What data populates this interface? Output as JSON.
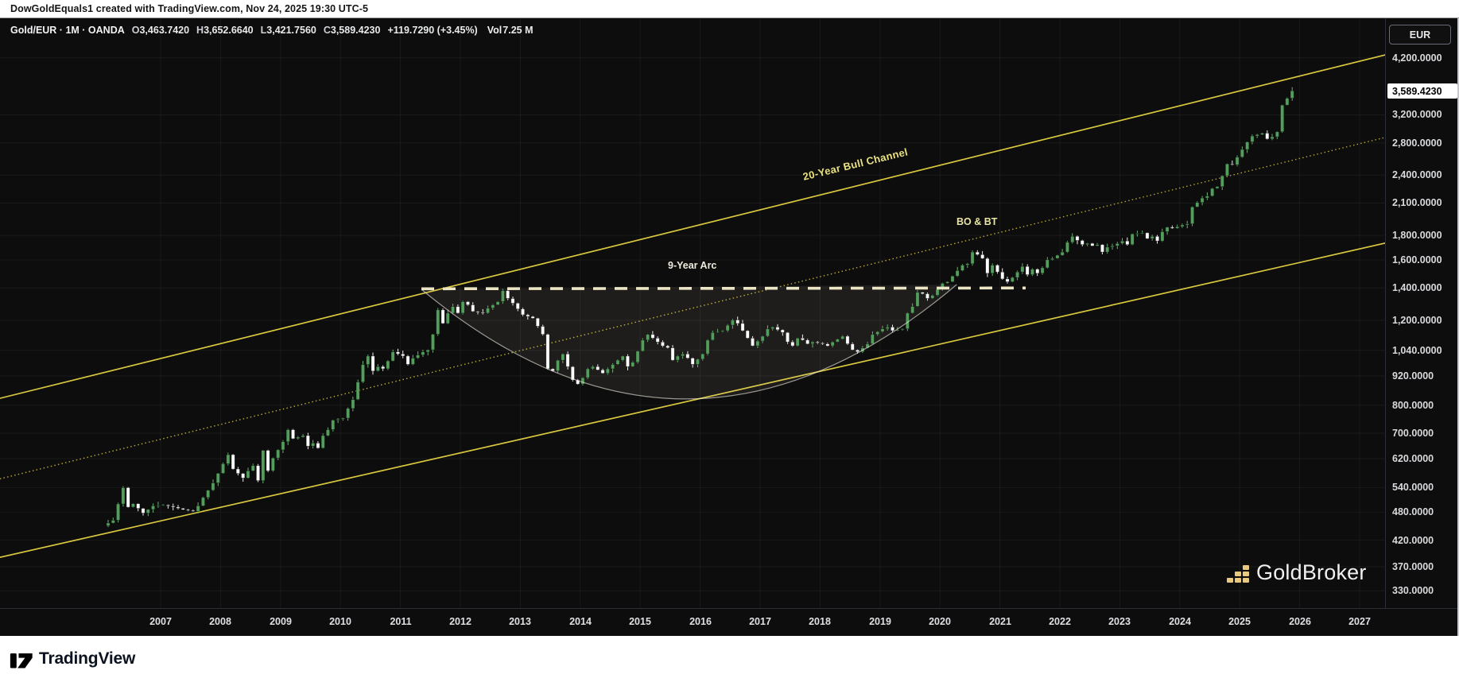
{
  "attribution": "DowGoldEquals1 created with TradingView.com, Nov 24, 2025 19:30 UTC-5",
  "legend": {
    "symbol_line": "Gold/EUR · 1M · OANDA",
    "o_label": "O",
    "o": "3,463.7420",
    "h_label": "H",
    "h": "3,652.6640",
    "l_label": "L",
    "l": "3,421.7560",
    "c_label": "C",
    "c": "3,589.4230",
    "change": "+119.7290 (+3.45%)",
    "vol_label": "Vol",
    "vol": "7.25 M"
  },
  "price_scale": {
    "currency_button": "EUR",
    "last_price_label": "3,589.4230"
  },
  "footer": {
    "brand": "TradingView"
  },
  "watermark": {
    "brand": "GoldBroker",
    "icon_color": "#e9c87f"
  },
  "annotation_labels": {
    "bull_channel": "20-Year Bull Channel",
    "arc": "9-Year Arc",
    "bo_bt": "BO & BT"
  },
  "colors": {
    "up_candle": "#539e5c",
    "up_wick": "#6fae76",
    "down_candle": "#ffffff",
    "down_wick": "#ededed",
    "channel_solid": "#d9c83d",
    "channel_dotted": "#b7aa30",
    "arc_chord_dashed": "#ece5c4",
    "arc_stroke": "rgba(244,241,229,0.6)",
    "arc_fill": "rgba(236,234,212,0.08)",
    "background": "#0d0d0d",
    "grid": "rgba(255,255,255,0.05)",
    "axis_text": "#d9dadd"
  },
  "chart_data": {
    "type": "candlestick",
    "title": "Gold/EUR · 1M · OANDA",
    "xlabel": "Year",
    "ylabel": "EUR",
    "y_scale": "log",
    "x_years": [
      "2007",
      "2008",
      "2009",
      "2010",
      "2011",
      "2012",
      "2013",
      "2014",
      "2015",
      "2016",
      "2017",
      "2018",
      "2019",
      "2020",
      "2021",
      "2022",
      "2023",
      "2024",
      "2025",
      "2026",
      "2027"
    ],
    "y_ticks": [
      {
        "v": 4200,
        "label": "4,200.0000"
      },
      {
        "v": 3200,
        "label": "3,200.0000"
      },
      {
        "v": 2800,
        "label": "2,800.0000"
      },
      {
        "v": 2400,
        "label": "2,400.0000"
      },
      {
        "v": 2100,
        "label": "2,100.0000"
      },
      {
        "v": 1800,
        "label": "1,800.0000"
      },
      {
        "v": 1600,
        "label": "1,600.0000"
      },
      {
        "v": 1400,
        "label": "1,400.0000"
      },
      {
        "v": 1200,
        "label": "1,200.0000"
      },
      {
        "v": 1040,
        "label": "1,040.0000"
      },
      {
        "v": 920,
        "label": "920.0000"
      },
      {
        "v": 800,
        "label": "800.0000"
      },
      {
        "v": 700,
        "label": "700.0000"
      },
      {
        "v": 620,
        "label": "620.0000"
      },
      {
        "v": 540,
        "label": "540.0000"
      },
      {
        "v": 480,
        "label": "480.0000"
      },
      {
        "v": 420,
        "label": "420.0000"
      },
      {
        "v": 370,
        "label": "370.0000"
      },
      {
        "v": 330,
        "label": "330.0000"
      }
    ],
    "months_range": {
      "start": "2006-02",
      "end": "2025-11"
    },
    "last_candle": {
      "o": 3463.742,
      "h": 3652.664,
      "l": 3421.756,
      "c": 3589.423,
      "change": 119.729,
      "change_pct": 3.45,
      "volume": "7.25 M"
    },
    "price_path": [
      [
        2006.083,
        450
      ],
      [
        2006.25,
        462
      ],
      [
        2006.417,
        540
      ],
      [
        2006.5,
        492
      ],
      [
        2006.583,
        500
      ],
      [
        2006.75,
        478
      ],
      [
        2006.917,
        495
      ],
      [
        2007.083,
        497
      ],
      [
        2007.25,
        492
      ],
      [
        2007.417,
        486
      ],
      [
        2007.583,
        482
      ],
      [
        2007.667,
        495
      ],
      [
        2007.75,
        515
      ],
      [
        2007.917,
        552
      ],
      [
        2008.083,
        605
      ],
      [
        2008.167,
        632
      ],
      [
        2008.25,
        590
      ],
      [
        2008.417,
        565
      ],
      [
        2008.5,
        585
      ],
      [
        2008.583,
        600
      ],
      [
        2008.667,
        558
      ],
      [
        2008.75,
        645
      ],
      [
        2008.833,
        585
      ],
      [
        2008.917,
        622
      ],
      [
        2009.083,
        672
      ],
      [
        2009.167,
        712
      ],
      [
        2009.25,
        682
      ],
      [
        2009.417,
        692
      ],
      [
        2009.5,
        658
      ],
      [
        2009.583,
        668
      ],
      [
        2009.667,
        652
      ],
      [
        2009.75,
        692
      ],
      [
        2009.833,
        712
      ],
      [
        2009.917,
        745
      ],
      [
        2010.083,
        752
      ],
      [
        2010.167,
        788
      ],
      [
        2010.25,
        822
      ],
      [
        2010.417,
        972
      ],
      [
        2010.5,
        1012
      ],
      [
        2010.583,
        942
      ],
      [
        2010.667,
        962
      ],
      [
        2010.75,
        952
      ],
      [
        2010.833,
        988
      ],
      [
        2010.917,
        1032
      ],
      [
        2011.083,
        1012
      ],
      [
        2011.167,
        972
      ],
      [
        2011.25,
        1002
      ],
      [
        2011.417,
        1032
      ],
      [
        2011.5,
        1042
      ],
      [
        2011.583,
        1122
      ],
      [
        2011.667,
        1262
      ],
      [
        2011.75,
        1182
      ],
      [
        2011.833,
        1242
      ],
      [
        2011.917,
        1282
      ],
      [
        2011.96,
        1210
      ],
      [
        2012.083,
        1312
      ],
      [
        2012.167,
        1292
      ],
      [
        2012.25,
        1252
      ],
      [
        2012.417,
        1242
      ],
      [
        2012.5,
        1272
      ],
      [
        2012.583,
        1292
      ],
      [
        2012.667,
        1312
      ],
      [
        2012.75,
        1382
      ],
      [
        2012.833,
        1332
      ],
      [
        2012.917,
        1302
      ],
      [
        2013.083,
        1232
      ],
      [
        2013.167,
        1222
      ],
      [
        2013.25,
        1212
      ],
      [
        2013.417,
        1122
      ],
      [
        2013.5,
        952
      ],
      [
        2013.583,
        942
      ],
      [
        2013.667,
        992
      ],
      [
        2013.75,
        1022
      ],
      [
        2013.833,
        962
      ],
      [
        2013.917,
        902
      ],
      [
        2013.96,
        872
      ],
      [
        2014.083,
        912
      ],
      [
        2014.167,
        952
      ],
      [
        2014.25,
        962
      ],
      [
        2014.417,
        932
      ],
      [
        2014.5,
        952
      ],
      [
        2014.583,
        972
      ],
      [
        2014.667,
        992
      ],
      [
        2014.75,
        1012
      ],
      [
        2014.833,
        962
      ],
      [
        2014.917,
        982
      ],
      [
        2015.083,
        1092
      ],
      [
        2015.167,
        1122
      ],
      [
        2015.25,
        1102
      ],
      [
        2015.417,
        1062
      ],
      [
        2015.5,
        1052
      ],
      [
        2015.583,
        992
      ],
      [
        2015.667,
        1012
      ],
      [
        2015.75,
        1022
      ],
      [
        2015.833,
        1002
      ],
      [
        2015.917,
        972
      ],
      [
        2016.083,
        1022
      ],
      [
        2016.167,
        1092
      ],
      [
        2016.25,
        1132
      ],
      [
        2016.417,
        1142
      ],
      [
        2016.5,
        1172
      ],
      [
        2016.583,
        1202
      ],
      [
        2016.667,
        1182
      ],
      [
        2016.75,
        1142
      ],
      [
        2016.833,
        1102
      ],
      [
        2016.917,
        1062
      ],
      [
        2017.083,
        1112
      ],
      [
        2017.167,
        1152
      ],
      [
        2017.25,
        1162
      ],
      [
        2017.417,
        1132
      ],
      [
        2017.5,
        1082
      ],
      [
        2017.583,
        1062
      ],
      [
        2017.667,
        1102
      ],
      [
        2017.75,
        1092
      ],
      [
        2017.833,
        1072
      ],
      [
        2017.917,
        1082
      ],
      [
        2018.083,
        1072
      ],
      [
        2018.167,
        1062
      ],
      [
        2018.25,
        1082
      ],
      [
        2018.417,
        1112
      ],
      [
        2018.5,
        1072
      ],
      [
        2018.583,
        1042
      ],
      [
        2018.667,
        1032
      ],
      [
        2018.75,
        1052
      ],
      [
        2018.833,
        1072
      ],
      [
        2018.917,
        1122
      ],
      [
        2019.083,
        1152
      ],
      [
        2019.167,
        1162
      ],
      [
        2019.25,
        1142
      ],
      [
        2019.417,
        1152
      ],
      [
        2019.5,
        1242
      ],
      [
        2019.583,
        1282
      ],
      [
        2019.667,
        1372
      ],
      [
        2019.75,
        1362
      ],
      [
        2019.833,
        1332
      ],
      [
        2019.917,
        1352
      ],
      [
        2020.083,
        1432
      ],
      [
        2020.167,
        1442
      ],
      [
        2020.25,
        1482
      ],
      [
        2020.417,
        1562
      ],
      [
        2020.5,
        1572
      ],
      [
        2020.583,
        1662
      ],
      [
        2020.667,
        1642
      ],
      [
        2020.75,
        1612
      ],
      [
        2020.833,
        1502
      ],
      [
        2020.917,
        1562
      ],
      [
        2021.083,
        1462
      ],
      [
        2021.167,
        1442
      ],
      [
        2021.25,
        1472
      ],
      [
        2021.417,
        1552
      ],
      [
        2021.5,
        1492
      ],
      [
        2021.583,
        1532
      ],
      [
        2021.667,
        1502
      ],
      [
        2021.75,
        1542
      ],
      [
        2021.833,
        1602
      ],
      [
        2021.917,
        1612
      ],
      [
        2022.083,
        1662
      ],
      [
        2022.167,
        1742
      ],
      [
        2022.25,
        1792
      ],
      [
        2022.417,
        1722
      ],
      [
        2022.5,
        1732
      ],
      [
        2022.583,
        1712
      ],
      [
        2022.667,
        1722
      ],
      [
        2022.75,
        1662
      ],
      [
        2022.833,
        1702
      ],
      [
        2022.917,
        1712
      ],
      [
        2023.083,
        1752
      ],
      [
        2023.167,
        1722
      ],
      [
        2023.25,
        1812
      ],
      [
        2023.417,
        1822
      ],
      [
        2023.5,
        1772
      ],
      [
        2023.583,
        1792
      ],
      [
        2023.667,
        1752
      ],
      [
        2023.75,
        1832
      ],
      [
        2023.833,
        1872
      ],
      [
        2023.917,
        1862
      ],
      [
        2024.083,
        1892
      ],
      [
        2024.167,
        1902
      ],
      [
        2024.25,
        2062
      ],
      [
        2024.417,
        2152
      ],
      [
        2024.5,
        2172
      ],
      [
        2024.583,
        2252
      ],
      [
        2024.667,
        2272
      ],
      [
        2024.75,
        2392
      ],
      [
        2024.833,
        2532
      ],
      [
        2024.917,
        2522
      ],
      [
        2025.083,
        2712
      ],
      [
        2025.167,
        2812
      ],
      [
        2025.25,
        2892
      ],
      [
        2025.417,
        2932
      ],
      [
        2025.5,
        2852
      ],
      [
        2025.583,
        2882
      ],
      [
        2025.667,
        2952
      ],
      [
        2025.75,
        3352
      ],
      [
        2025.833,
        3462
      ],
      [
        2025.917,
        3589.423
      ]
    ],
    "annotations": {
      "lines": [
        {
          "name": "bull-channel-upper",
          "style": "solid",
          "from": [
            2004.32,
            827
          ],
          "to": [
            2027.43,
            4262
          ]
        },
        {
          "name": "bull-channel-mid",
          "style": "dotted",
          "from": [
            2004.32,
            563
          ],
          "to": [
            2027.43,
            2874
          ]
        },
        {
          "name": "bull-channel-lower",
          "style": "solid",
          "from": [
            2004.32,
            387
          ],
          "to": [
            2027.43,
            1735
          ]
        }
      ],
      "arc_chord_dashed": {
        "from": [
          2011.35,
          1395
        ],
        "to": [
          2021.43,
          1400
        ]
      },
      "arc": {
        "start": [
          2011.35,
          1391
        ],
        "control": [
          2015.81,
          483
        ],
        "end": [
          2020.28,
          1423
        ]
      }
    }
  }
}
